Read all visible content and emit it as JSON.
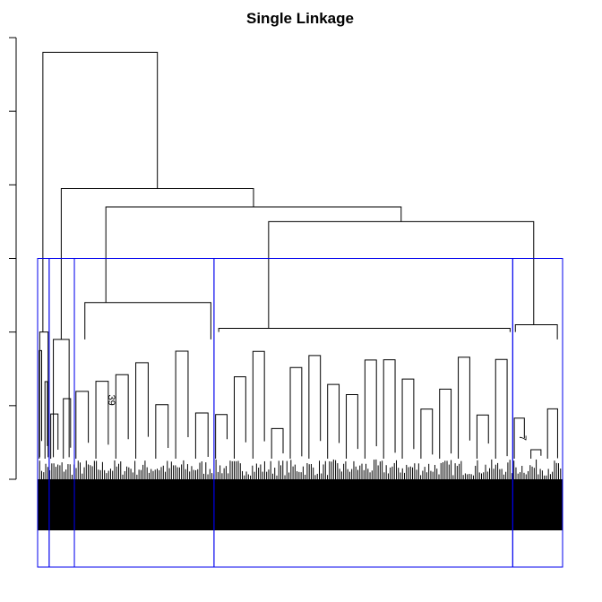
{
  "chart_data": {
    "type": "dendrogram",
    "title": "Single Linkage",
    "xlabel": "",
    "ylabel": "",
    "y_axis_tick_labels_shown": false,
    "n_ticks": 7,
    "tick_values": [
      0,
      1,
      2,
      3,
      4,
      5,
      6
    ],
    "ylim": [
      0,
      6
    ],
    "rect_hclust_cut_height": 3.0,
    "rect_hclust_k": 5,
    "clusters": [
      {
        "id": 1,
        "leaf_range": [
          0.0,
          0.022
        ]
      },
      {
        "id": 2,
        "leaf_range": [
          0.022,
          0.07
        ]
      },
      {
        "id": 3,
        "leaf_range": [
          0.07,
          0.336
        ]
      },
      {
        "id": 4,
        "leaf_range": [
          0.336,
          0.905
        ]
      },
      {
        "id": 5,
        "leaf_range": [
          0.905,
          1.0
        ]
      }
    ],
    "top_merges": [
      {
        "height": 5.8,
        "joins": [
          "cluster 1",
          "clusters 2-5"
        ]
      },
      {
        "height": 3.95,
        "joins": [
          "cluster 2",
          "clusters 3-5"
        ]
      },
      {
        "height": 3.7,
        "joins": [
          "cluster 3",
          "clusters 4-5"
        ]
      },
      {
        "height": 3.5,
        "joins": [
          "cluster 4",
          "cluster 5"
        ]
      }
    ],
    "visible_leaf_labels": [
      "39",
      "7"
    ]
  }
}
